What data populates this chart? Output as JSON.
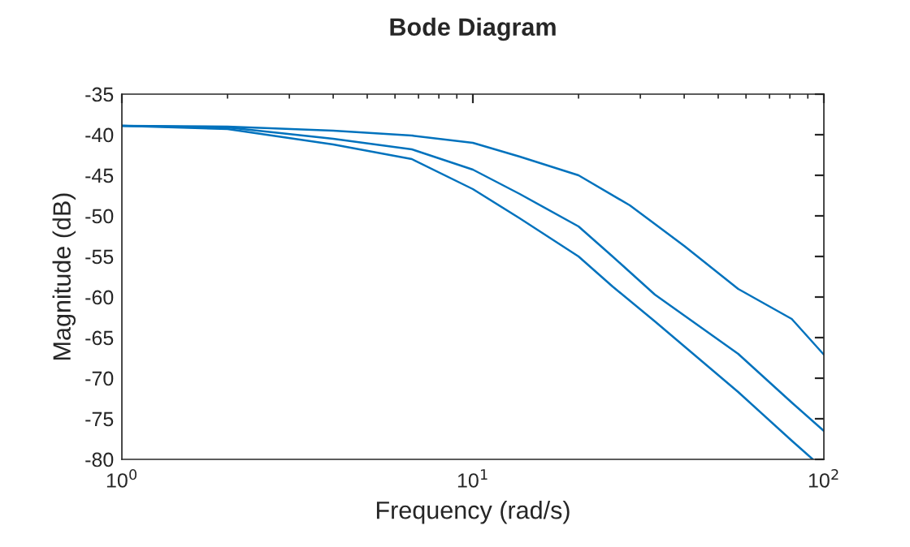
{
  "chart_data": {
    "type": "line",
    "title": "Bode Diagram",
    "xlabel": "Frequency (rad/s)",
    "ylabel": "Magnitude (dB)",
    "log": "x",
    "grid": false,
    "marker": "none",
    "line_style": "solid",
    "xlim": [
      1,
      100
    ],
    "xticks": [
      {
        "value": 1,
        "label": "10$^{0}$"
      },
      {
        "value": 10,
        "label": "10$^{1}$"
      },
      {
        "value": 100,
        "label": "10$^{2}$"
      }
    ],
    "ylim": [
      -80,
      -35
    ],
    "yticks": [
      -80,
      -75,
      -70,
      -65,
      -60,
      -55,
      -50,
      -45,
      -40,
      -35
    ],
    "series": [
      {
        "color": "#0072bd",
        "x": [
          1,
          2,
          4,
          6.7,
          10,
          13.6,
          20,
          28,
          33,
          40,
          57,
          81,
          100
        ],
        "values": [
          -38.9,
          -39,
          -39.5,
          -40.1,
          -41,
          -42.7,
          -45,
          -48.7,
          -51,
          -53.7,
          -59,
          -62.7,
          -67.1
        ]
      },
      {
        "color": "#0072bd",
        "x": [
          1,
          2,
          4,
          6.7,
          10,
          13.6,
          20,
          25,
          33,
          57,
          81,
          100
        ],
        "values": [
          -38.9,
          -39.1,
          -40.5,
          -41.8,
          -44.3,
          -47.3,
          -51.3,
          -55,
          -59.7,
          -67,
          -73,
          -76.5
        ]
      },
      {
        "color": "#0072bd",
        "x": [
          1,
          2,
          4,
          6.7,
          10,
          13.6,
          20,
          25,
          33,
          57,
          81,
          93
        ],
        "values": [
          -38.9,
          -39.3,
          -41.2,
          -43,
          -46.7,
          -50.3,
          -55,
          -58.7,
          -63,
          -71.7,
          -77.7,
          -80
        ]
      }
    ]
  }
}
